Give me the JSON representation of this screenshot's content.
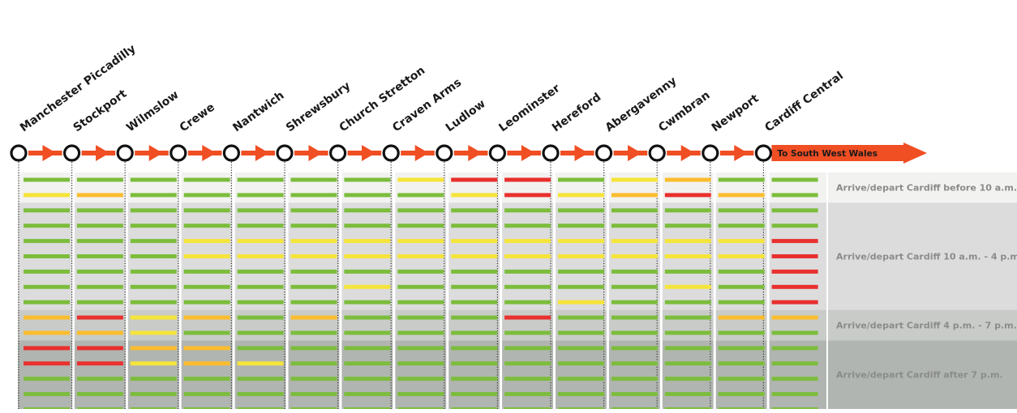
{
  "route": {
    "stations": [
      "Manchester Piccadilly",
      "Stockport",
      "Wilmslow",
      "Crewe",
      "Nantwich",
      "Shrewsbury",
      "Church Stretton",
      "Craven Arms",
      "Ludlow",
      "Leominster",
      "Hereford",
      "Abergavenny",
      "Cwmbran",
      "Newport",
      "Cardiff Central"
    ],
    "arrow_label": "To South West Wales",
    "line_color": "#f04e23"
  },
  "bands": [
    {
      "label": "Arrive/depart Cardiff  before 10 a.m.",
      "rows": 2,
      "color": "#f2f2f0"
    },
    {
      "label": "Arrive/depart Cardiff 10 a.m. - 4 p.m.",
      "rows": 7,
      "color": "#dcdcdc"
    },
    {
      "label": "Arrive/depart Cardiff 4 p.m. - 7 p.m.",
      "rows": 2,
      "color": "#c9cbc9"
    },
    {
      "label": "Arrive/depart Cardiff after 7 p.m.",
      "rows": 5,
      "color": "#b1b5b1"
    }
  ],
  "legend_colors": {
    "G": "#7cbd3c",
    "Y": "#f5e43a",
    "O": "#fbbd2e",
    "R": "#e8302e"
  },
  "grid": [
    "GGGGGGGYRRGYOGG",
    "YOGGGGGGYRYOROG",
    "GGGGGGGGGGGGGGG",
    "GGGGGGGGGGGGGGG",
    "GGGYYYYYYYYYYYR",
    "GGGYYYYYYYYYYYR",
    "GGGGGGGGGGGGGGR",
    "GGGGGGYGGGGGYGR",
    "GGGGGGGGGGYGGGR",
    "ORYOGOGGGRGGGOO",
    "OOYGGGGGGGGGGGG",
    "RROOGGGGGGGGGGG",
    "RRYOYGGGGGGGGGG",
    "GGGGGGGGGGGGGGG",
    "GGGGGGGGGGGGGGG",
    "GGGGGGGGGGGGGGG"
  ]
}
